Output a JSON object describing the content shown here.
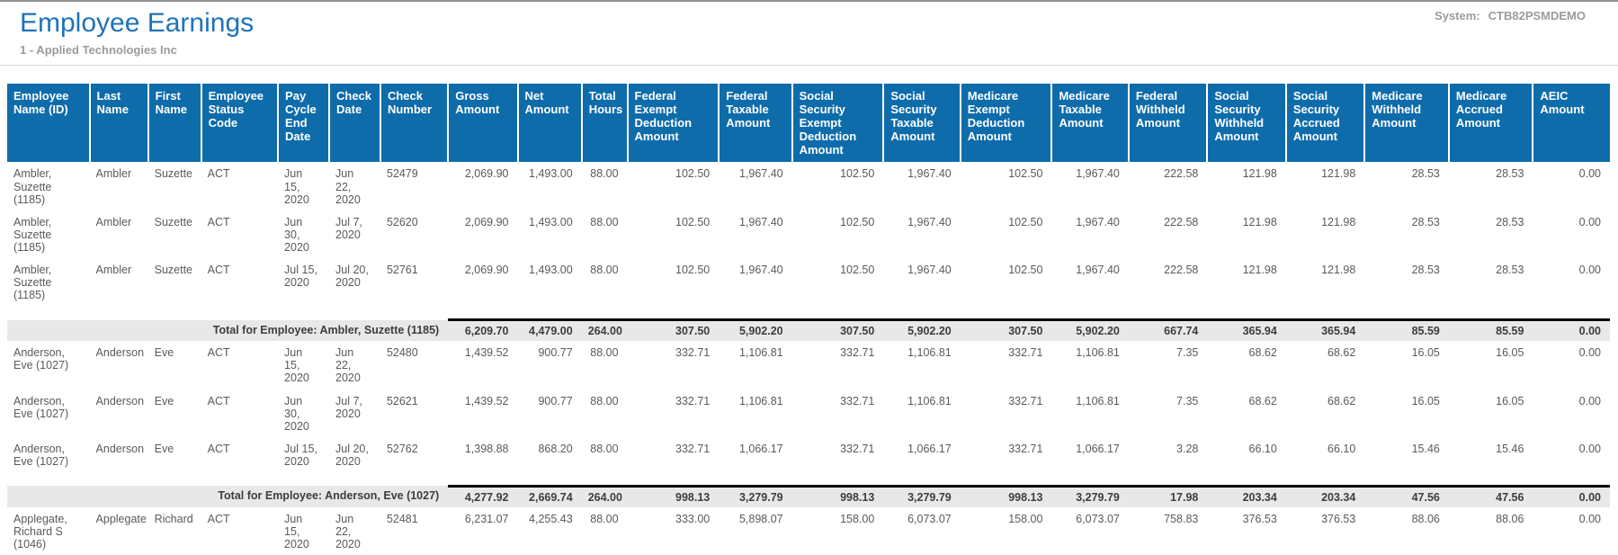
{
  "page": {
    "title": "Employee Earnings",
    "subtitle": "1 - Applied Technologies Inc",
    "system_label": "System:",
    "system_value": "CTB82PSMDEMO"
  },
  "colors": {
    "title_blue": "#1e73bb",
    "header_blue": "#0f6cab",
    "total_row_bg": "#e8e8e8",
    "body_text": "#5a5a5a",
    "muted_gray": "#9b9b9b"
  },
  "table": {
    "columns": [
      "Employee Name (ID)",
      "Last Name",
      "First Name",
      "Employee Status Code",
      "Pay Cycle End Date",
      "Check Date",
      "Check Number",
      "Gross Amount",
      "Net Amount",
      "Total Hours",
      "Federal Exempt Deduction Amount",
      "Federal Taxable Amount",
      "Social Security Exempt Deduction Amount",
      "Social Security Taxable Amount",
      "Medicare Exempt Deduction Amount",
      "Medicare Taxable Amount",
      "Federal Withheld Amount",
      "Social Security Withheld Amount",
      "Social Security Accrued Amount",
      "Medicare Withheld Amount",
      "Medicare Accrued Amount",
      "AEIC Amount"
    ],
    "rows": [
      {
        "type": "detail",
        "cells": [
          "Ambler, Suzette (1185)",
          "Ambler",
          "Suzette",
          "ACT",
          "Jun 15, 2020",
          "Jun 22, 2020",
          "52479",
          "2,069.90",
          "1,493.00",
          "88.00",
          "102.50",
          "1,967.40",
          "102.50",
          "1,967.40",
          "102.50",
          "1,967.40",
          "222.58",
          "121.98",
          "121.98",
          "28.53",
          "28.53",
          "0.00"
        ]
      },
      {
        "type": "detail",
        "cells": [
          "Ambler, Suzette (1185)",
          "Ambler",
          "Suzette",
          "ACT",
          "Jun 30, 2020",
          "Jul 7, 2020",
          "52620",
          "2,069.90",
          "1,493.00",
          "88.00",
          "102.50",
          "1,967.40",
          "102.50",
          "1,967.40",
          "102.50",
          "1,967.40",
          "222.58",
          "121.98",
          "121.98",
          "28.53",
          "28.53",
          "0.00"
        ]
      },
      {
        "type": "detail",
        "cells": [
          "Ambler, Suzette (1185)",
          "Ambler",
          "Suzette",
          "ACT",
          "Jul 15, 2020",
          "Jul 20, 2020",
          "52761",
          "2,069.90",
          "1,493.00",
          "88.00",
          "102.50",
          "1,967.40",
          "102.50",
          "1,967.40",
          "102.50",
          "1,967.40",
          "222.58",
          "121.98",
          "121.98",
          "28.53",
          "28.53",
          "0.00"
        ]
      },
      {
        "type": "total",
        "label": "Total for Employee: Ambler, Suzette (1185)",
        "values": [
          "6,209.70",
          "4,479.00",
          "264.00",
          "307.50",
          "5,902.20",
          "307.50",
          "5,902.20",
          "307.50",
          "5,902.20",
          "667.74",
          "365.94",
          "365.94",
          "85.59",
          "85.59",
          "0.00"
        ]
      },
      {
        "type": "detail",
        "cells": [
          "Anderson, Eve (1027)",
          "Anderson",
          "Eve",
          "ACT",
          "Jun 15, 2020",
          "Jun 22, 2020",
          "52480",
          "1,439.52",
          "900.77",
          "88.00",
          "332.71",
          "1,106.81",
          "332.71",
          "1,106.81",
          "332.71",
          "1,106.81",
          "7.35",
          "68.62",
          "68.62",
          "16.05",
          "16.05",
          "0.00"
        ]
      },
      {
        "type": "detail",
        "cells": [
          "Anderson, Eve (1027)",
          "Anderson",
          "Eve",
          "ACT",
          "Jun 30, 2020",
          "Jul 7, 2020",
          "52621",
          "1,439.52",
          "900.77",
          "88.00",
          "332.71",
          "1,106.81",
          "332.71",
          "1,106.81",
          "332.71",
          "1,106.81",
          "7.35",
          "68.62",
          "68.62",
          "16.05",
          "16.05",
          "0.00"
        ]
      },
      {
        "type": "detail",
        "cells": [
          "Anderson, Eve (1027)",
          "Anderson",
          "Eve",
          "ACT",
          "Jul 15, 2020",
          "Jul 20, 2020",
          "52762",
          "1,398.88",
          "868.20",
          "88.00",
          "332.71",
          "1,066.17",
          "332.71",
          "1,066.17",
          "332.71",
          "1,066.17",
          "3.28",
          "66.10",
          "66.10",
          "15.46",
          "15.46",
          "0.00"
        ]
      },
      {
        "type": "total",
        "label": "Total for Employee: Anderson, Eve (1027)",
        "values": [
          "4,277.92",
          "2,669.74",
          "264.00",
          "998.13",
          "3,279.79",
          "998.13",
          "3,279.79",
          "998.13",
          "3,279.79",
          "17.98",
          "203.34",
          "203.34",
          "47.56",
          "47.56",
          "0.00"
        ]
      },
      {
        "type": "detail",
        "cells": [
          "Applegate, Richard S (1046)",
          "Applegate",
          "Richard",
          "ACT",
          "Jun 15, 2020",
          "Jun 22, 2020",
          "52481",
          "6,231.07",
          "4,255.43",
          "88.00",
          "333.00",
          "5,898.07",
          "158.00",
          "6,073.07",
          "158.00",
          "6,073.07",
          "758.83",
          "376.53",
          "376.53",
          "88.06",
          "88.06",
          "0.00"
        ]
      }
    ]
  }
}
